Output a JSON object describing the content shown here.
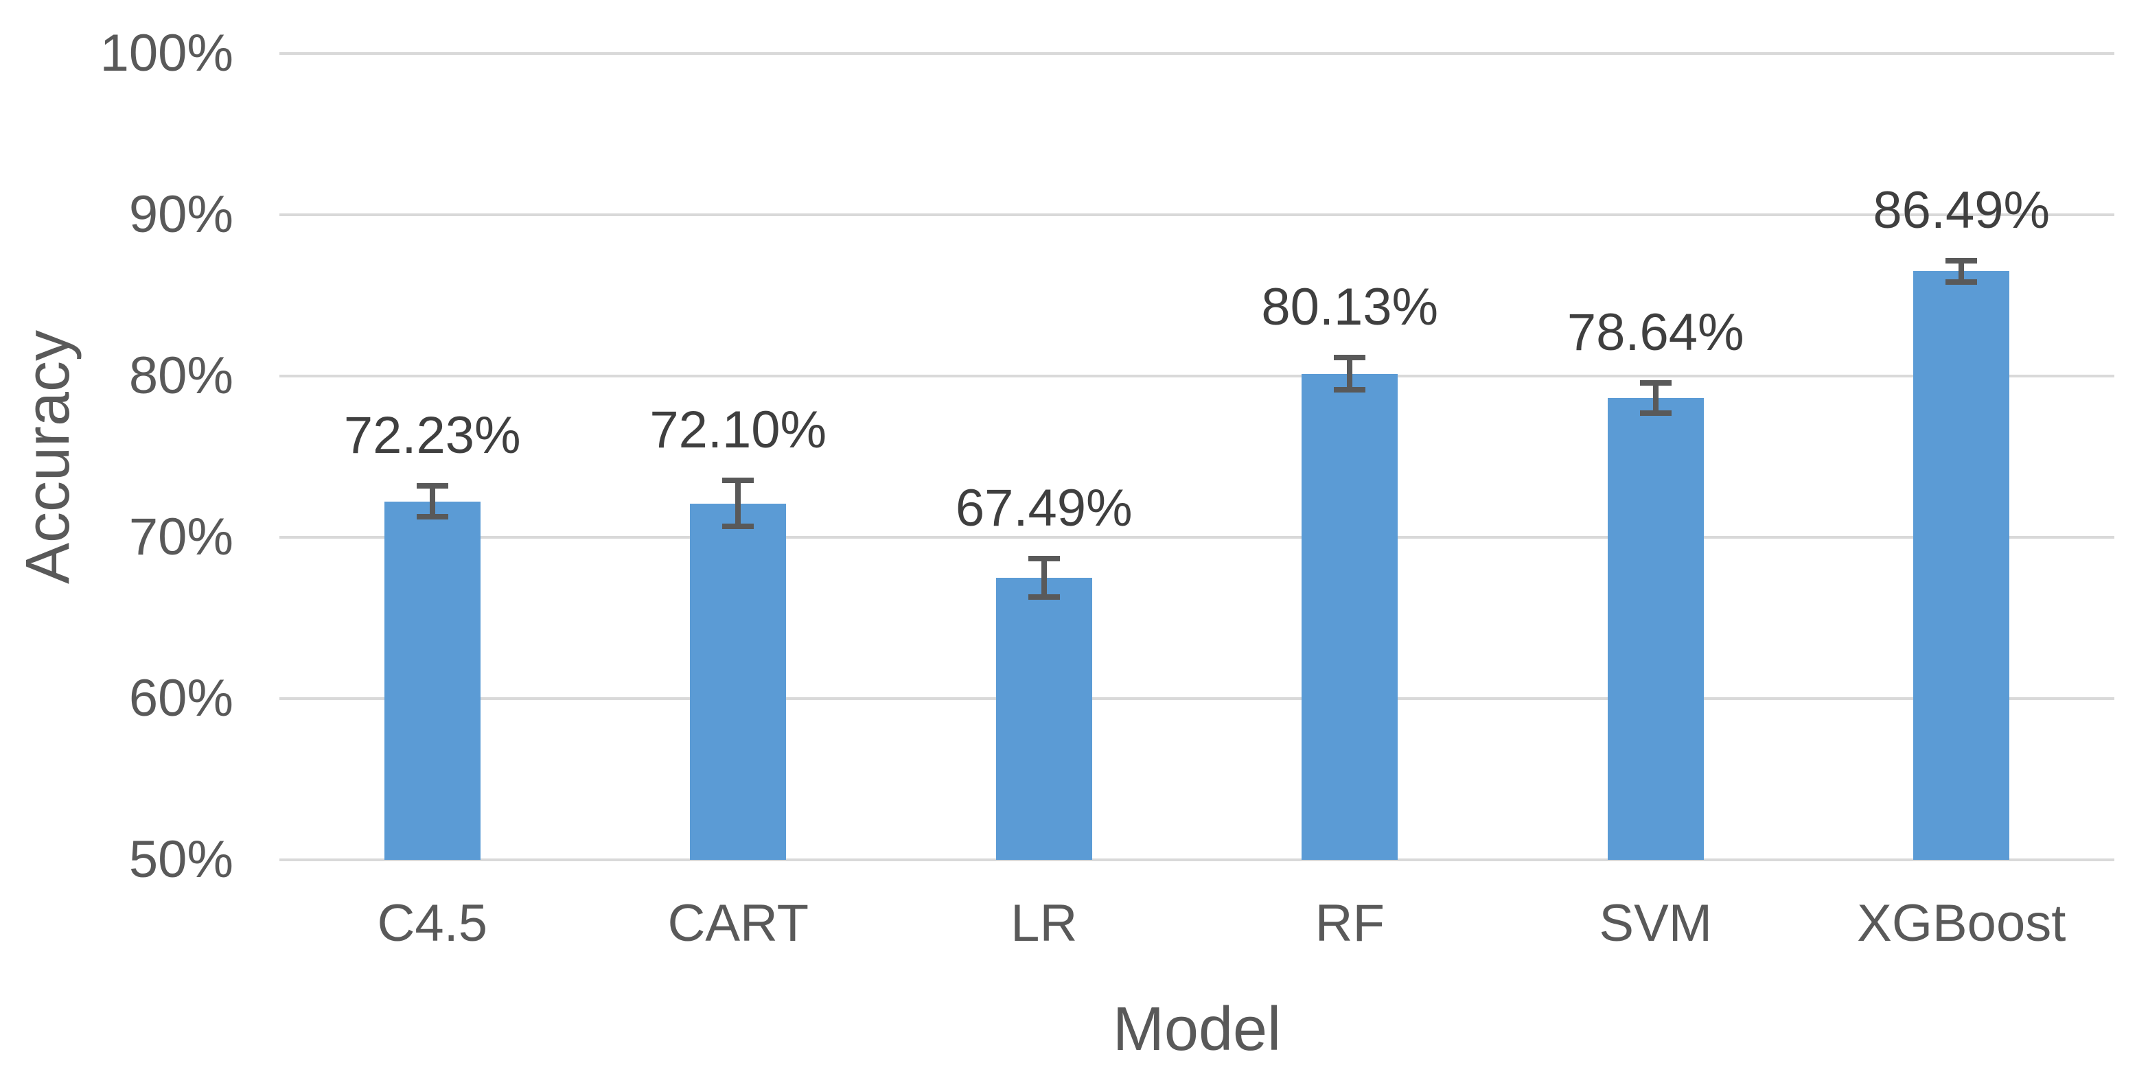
{
  "chart_data": {
    "type": "bar",
    "title": "",
    "categories": [
      "C4.5",
      "CART",
      "LR",
      "RF",
      "SVM",
      "XGBoost"
    ],
    "values": [
      72.23,
      72.1,
      67.49,
      80.13,
      78.64,
      86.49
    ],
    "value_labels": [
      "72.23%",
      "72.10%",
      "67.49%",
      "80.13%",
      "78.64%",
      "86.49%"
    ],
    "error_bars": [
      1.13,
      1.6,
      1.38,
      1.17,
      1.11,
      0.85
    ],
    "xlabel": "Model",
    "ylabel": "Accuracy",
    "ylim": [
      50,
      100
    ],
    "ytick_step": 10,
    "ytick_labels": [
      "50%",
      "60%",
      "70%",
      "80%",
      "90%",
      "100%"
    ],
    "grid": true,
    "legend_position": "none",
    "bar_color": "#5B9BD5",
    "error_bar_color": "#595959",
    "gridline_color": "#D9D9D9",
    "axis_text_color": "#595959",
    "data_label_color": "#3F3F3F"
  }
}
